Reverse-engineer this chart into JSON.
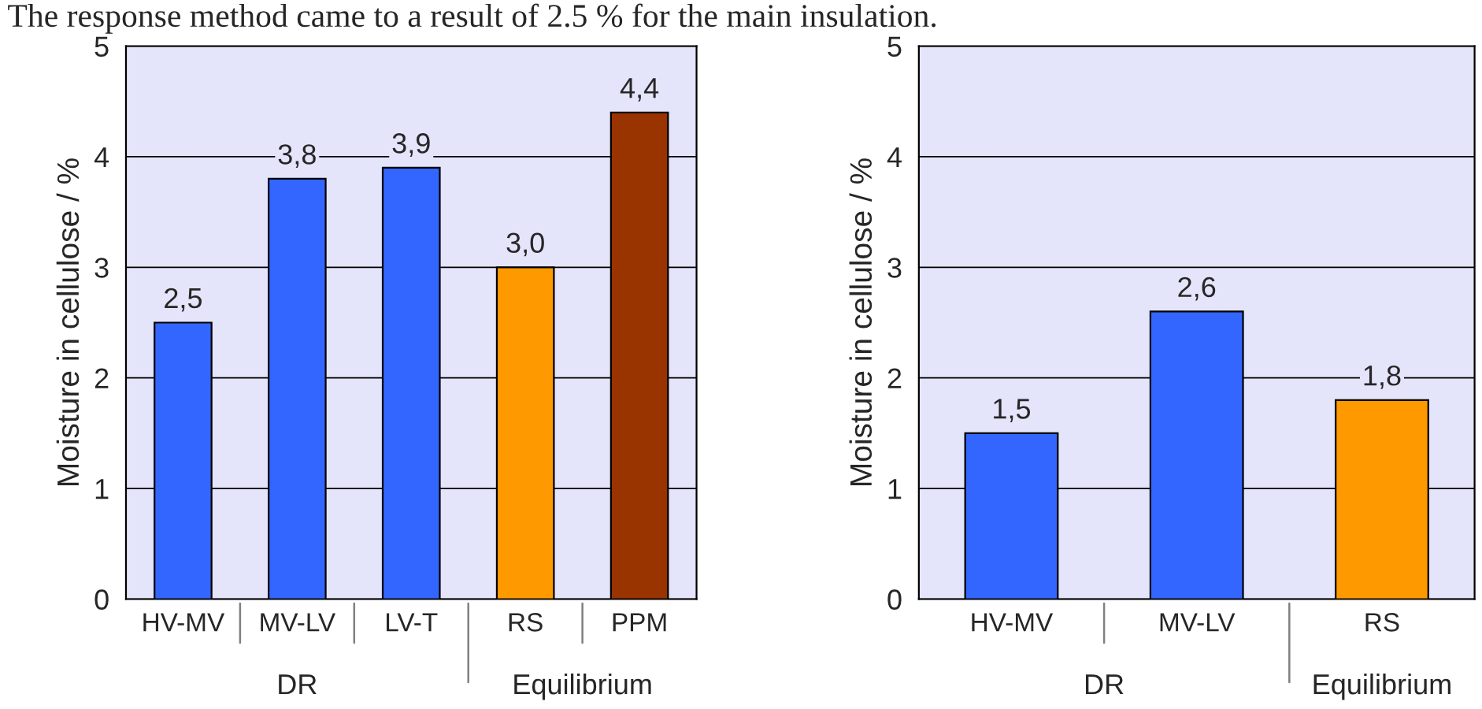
{
  "chart_data": [
    {
      "type": "bar",
      "title": "The response method came to a result of 2.5 % for the main insulation.",
      "ylabel": "Moisture in cellulose / %",
      "categories": [
        "HV-MV",
        "MV-LV",
        "LV-T",
        "RS",
        "PPM"
      ],
      "values": [
        2.5,
        3.8,
        3.9,
        3.0,
        4.4
      ],
      "value_labels": [
        "2,5",
        "3,8",
        "3,9",
        "3,0",
        "4,4"
      ],
      "colors": [
        "#3366ff",
        "#3366ff",
        "#3366ff",
        "#ff9900",
        "#993300"
      ],
      "annotations": [
        "DR",
        "Equilibrium"
      ],
      "ylim": [
        0,
        5
      ],
      "yticks": [
        0,
        1,
        2,
        3,
        4,
        5
      ],
      "grid": "y",
      "legend": false
    },
    {
      "type": "bar",
      "ylabel": "Moisture in cellulose / %",
      "categories": [
        "HV-MV",
        "MV-LV",
        "RS"
      ],
      "values": [
        1.5,
        2.6,
        1.8
      ],
      "value_labels": [
        "1,5",
        "2,6",
        "1,8"
      ],
      "colors": [
        "#3366ff",
        "#3366ff",
        "#ff9900"
      ],
      "annotations": [
        "DR",
        "Equilibrium"
      ],
      "ylim": [
        0,
        5
      ],
      "yticks": [
        0,
        1,
        2,
        3,
        4,
        5
      ],
      "grid": "y",
      "legend": false
    }
  ]
}
